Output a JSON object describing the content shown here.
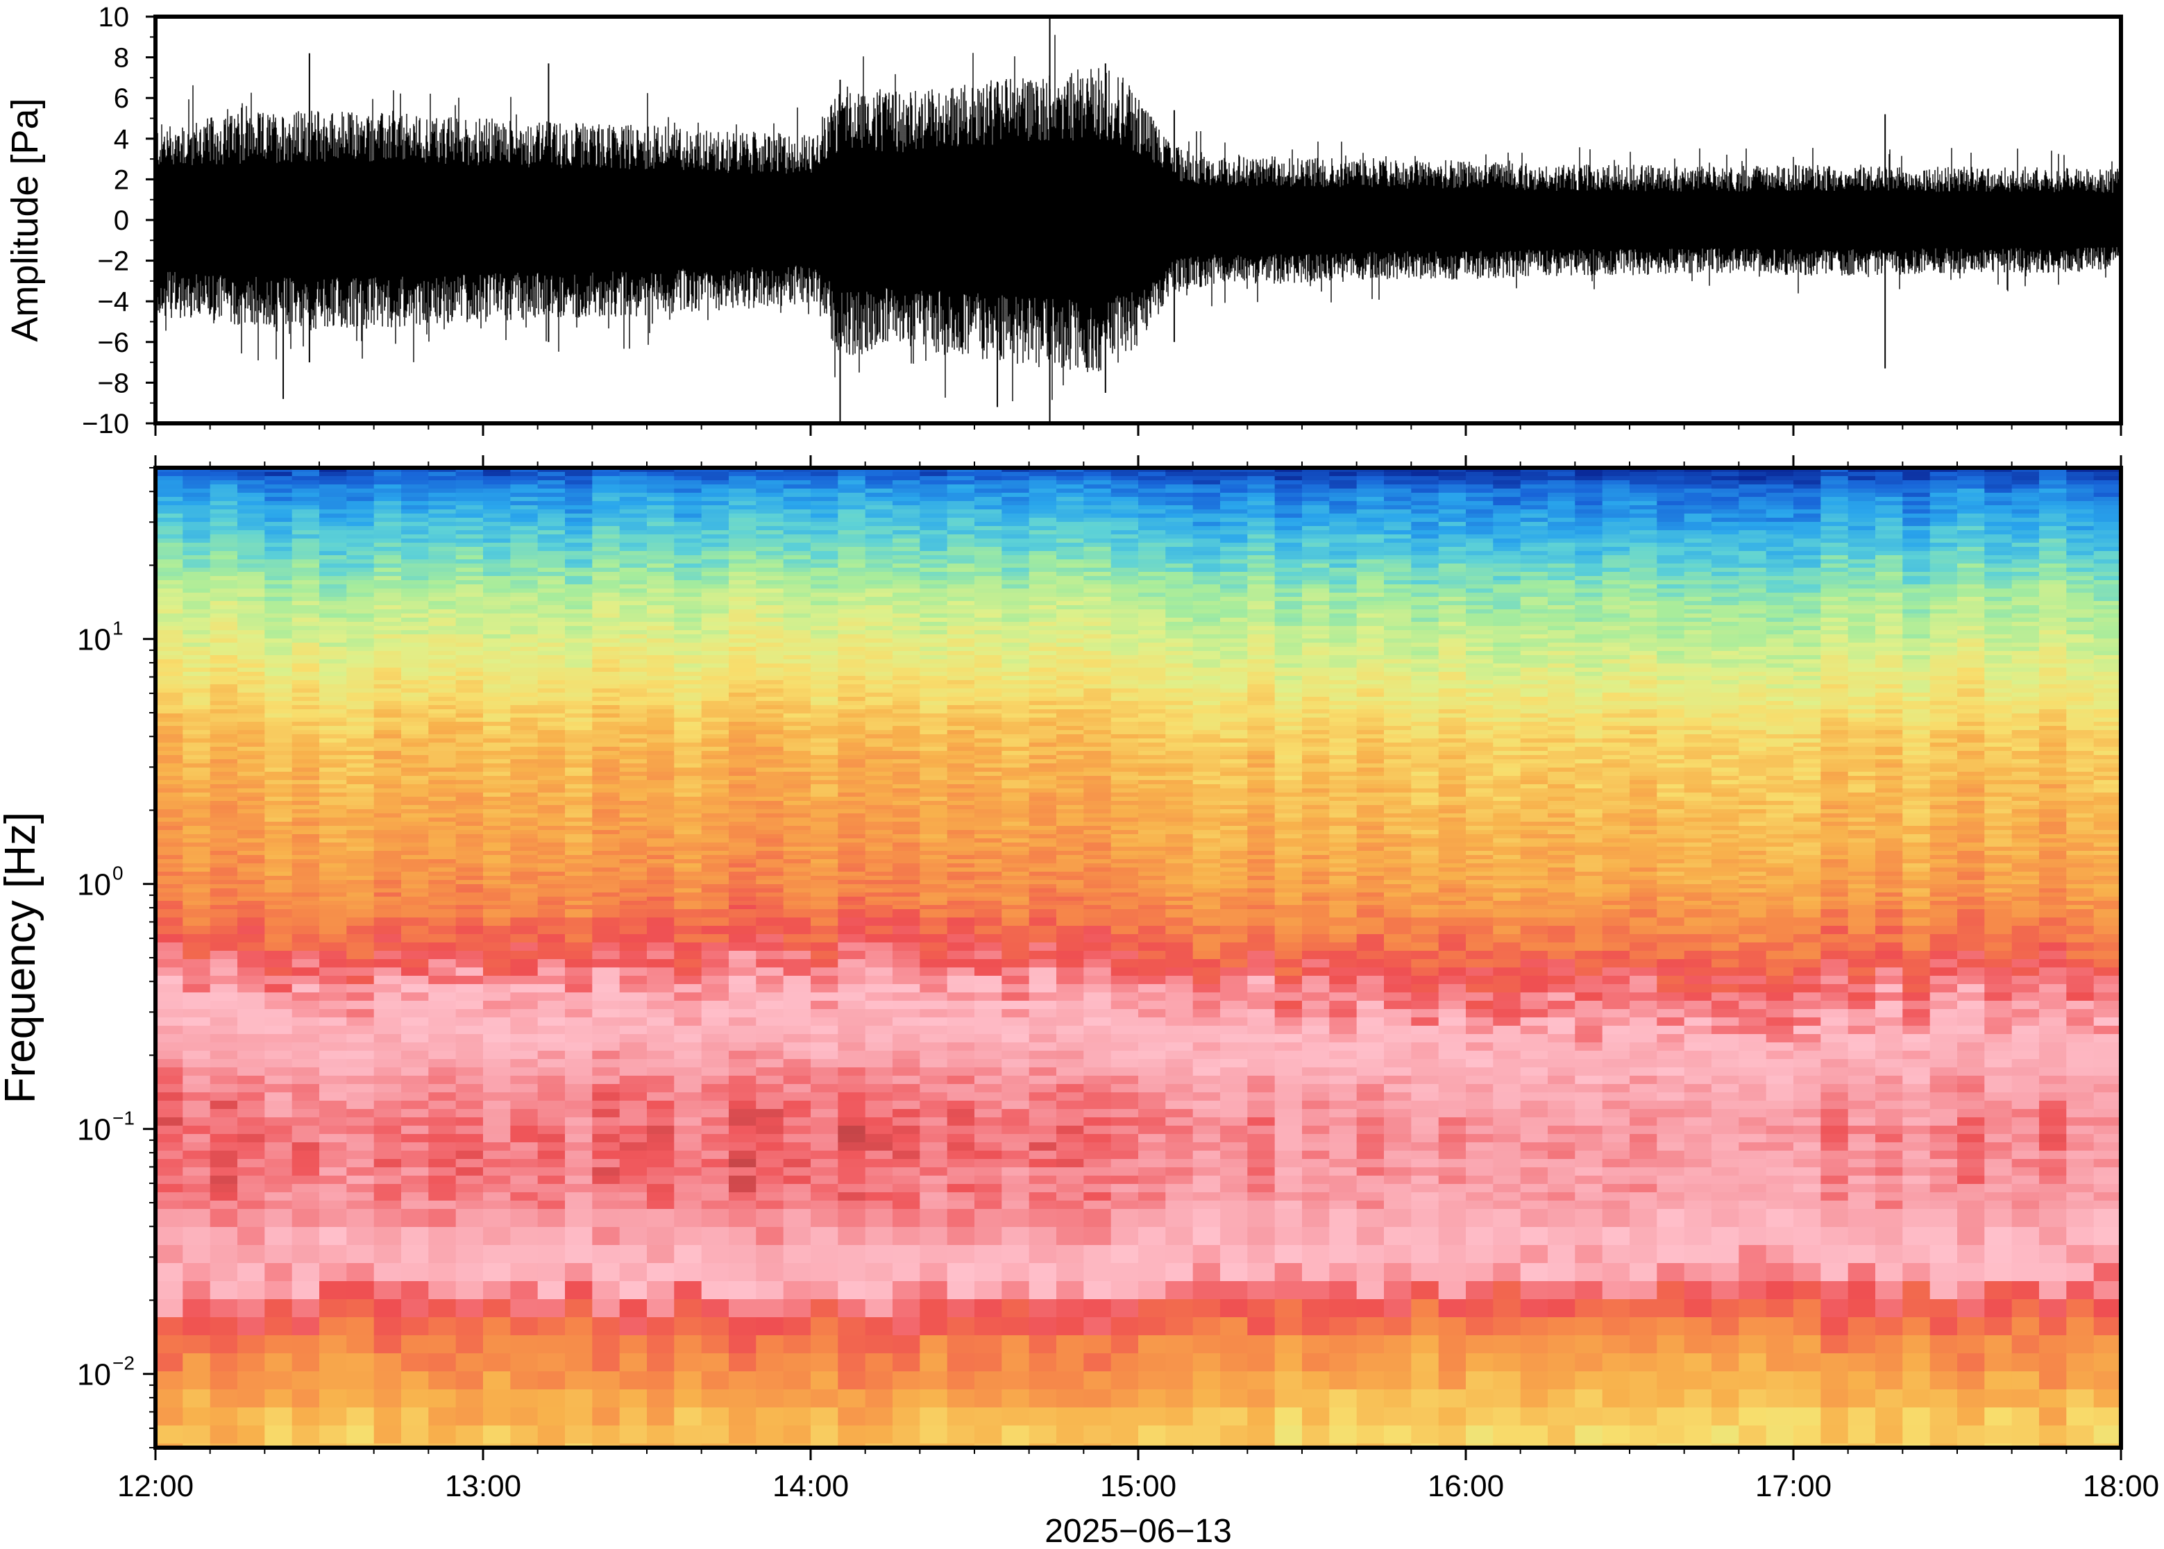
{
  "chart_data": [
    {
      "type": "line",
      "panel": "waveform",
      "ylabel": "Amplitude [Pa]",
      "ylim": [
        -10,
        10
      ],
      "yticks": [
        10,
        8,
        6,
        4,
        2,
        0,
        -2,
        -4,
        -6,
        -8,
        -10
      ],
      "ytick_labels": [
        "10",
        "8",
        "6",
        "4",
        "2",
        "0",
        "−2",
        "−4",
        "−6",
        "−8",
        "−10"
      ],
      "xlim": [
        "12:00",
        "18:00"
      ],
      "series": [
        {
          "color": "#000000",
          "x_hours": [
            12.0,
            12.25,
            12.5,
            12.75,
            13.0,
            13.25,
            13.5,
            13.75,
            14.0,
            14.1,
            14.25,
            14.5,
            14.73,
            14.9,
            15.0,
            15.1,
            15.25,
            15.5,
            15.75,
            16.0,
            16.25,
            16.5,
            16.75,
            17.0,
            17.25,
            17.5,
            17.75,
            18.0
          ],
          "amplitude_envelope": [
            4.5,
            5.0,
            5.2,
            5.0,
            4.8,
            4.6,
            4.5,
            4.2,
            4.0,
            6.5,
            6.0,
            6.5,
            7.0,
            7.2,
            6.0,
            3.5,
            3.0,
            3.0,
            2.8,
            2.8,
            2.6,
            2.6,
            2.5,
            2.6,
            2.6,
            2.5,
            2.5,
            2.4
          ],
          "peaks": [
            {
              "x_hours": 12.47,
              "max": 8.2,
              "min": -7.0
            },
            {
              "x_hours": 12.39,
              "max": 5.0,
              "min": -8.8
            },
            {
              "x_hours": 13.2,
              "max": 7.7,
              "min": -6.0
            },
            {
              "x_hours": 14.09,
              "max": 6.9,
              "min": -10.0
            },
            {
              "x_hours": 14.57,
              "max": 6.8,
              "min": -9.2
            },
            {
              "x_hours": 14.73,
              "max": 10.0,
              "min": -10.0
            },
            {
              "x_hours": 14.9,
              "max": 7.7,
              "min": -8.5
            },
            {
              "x_hours": 15.11,
              "max": 5.4,
              "min": -6.0
            },
            {
              "x_hours": 17.28,
              "max": 5.2,
              "min": -7.3
            }
          ]
        }
      ]
    },
    {
      "type": "heatmap",
      "panel": "spectrogram",
      "ylabel": "Frequency [Hz]",
      "yscale": "log",
      "ylim_hz": [
        0.005,
        50
      ],
      "yticks_hz": [
        10,
        1,
        0.1,
        0.01
      ],
      "ytick_labels": [
        {
          "base": "10",
          "exp": "1"
        },
        {
          "base": "10",
          "exp": "0"
        },
        {
          "base": "10",
          "exp": "−1"
        },
        {
          "base": "10",
          "exp": "−2"
        }
      ],
      "colormap": [
        "#8a2f31",
        "#ef5458",
        "#f9a2ab",
        "#ffc0cb",
        "#ef4f52",
        "#f6884a",
        "#f8b14c",
        "#f8dd6c",
        "#dff08a",
        "#a6ec9c",
        "#5ed2d6",
        "#2aa6ec",
        "#1864d8",
        "#0a2a9a"
      ],
      "frequency_hz": [
        50,
        40,
        30,
        20,
        15,
        10,
        6,
        4,
        2,
        1,
        0.6,
        0.4,
        0.25,
        0.15,
        0.1,
        0.07,
        0.05,
        0.035,
        0.025,
        0.018,
        0.013,
        0.009,
        0.006
      ],
      "relative_level_profile": [
        0.95,
        0.86,
        0.8,
        0.72,
        0.66,
        0.61,
        0.54,
        0.48,
        0.44,
        0.4,
        0.33,
        0.26,
        0.2,
        0.13,
        0.1,
        0.11,
        0.12,
        0.17,
        0.22,
        0.3,
        0.37,
        0.42,
        0.48
      ]
    }
  ],
  "x_axis": {
    "tick_labels": [
      "12:00",
      "13:00",
      "14:00",
      "15:00",
      "16:00",
      "17:00",
      "18:00"
    ],
    "date_label": "2025−06−13"
  }
}
